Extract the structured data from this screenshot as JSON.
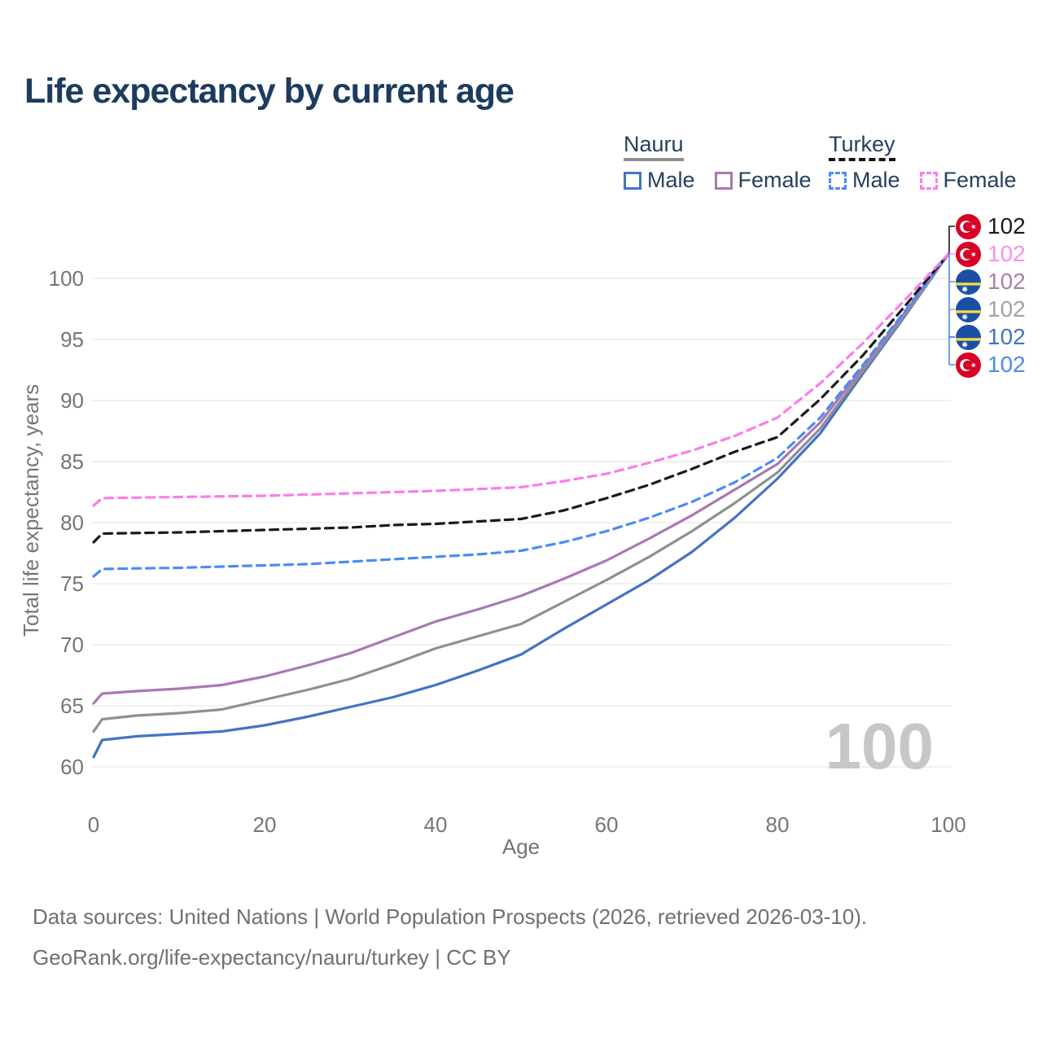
{
  "title": "Life expectancy by current age",
  "watermark": "100",
  "legend": {
    "groups": [
      {
        "label": "Nauru",
        "line_style": "solid",
        "header_swatch_color": "#8f8f8f",
        "items": [
          {
            "label": "Male",
            "color": "#4472c4"
          },
          {
            "label": "Female",
            "color": "#aa77b4"
          }
        ]
      },
      {
        "label": "Turkey",
        "line_style": "dashed",
        "header_swatch_color": "#141414",
        "items": [
          {
            "label": "Male",
            "color": "#4a8cf7"
          },
          {
            "label": "Female",
            "color": "#fa7de8"
          }
        ]
      }
    ]
  },
  "end_labels": [
    {
      "value": "102",
      "flag": "turkey",
      "color": "#1a1a1a"
    },
    {
      "value": "102",
      "flag": "turkey",
      "color": "#fc8fe8"
    },
    {
      "value": "102",
      "flag": "nauru",
      "color": "#a87fb0"
    },
    {
      "value": "102",
      "flag": "nauru",
      "color": "#a3a3a3"
    },
    {
      "value": "102",
      "flag": "nauru",
      "color": "#4472c4"
    },
    {
      "value": "102",
      "flag": "turkey",
      "color": "#4a8cf7"
    }
  ],
  "chart_data": {
    "type": "line",
    "title": "Life expectancy by current age",
    "xlabel": "Age",
    "ylabel": "Total life expectancy, years",
    "xlim": [
      0,
      100
    ],
    "ylim": [
      58,
      103
    ],
    "x_ticks": [
      0,
      20,
      40,
      60,
      80,
      100
    ],
    "y_ticks": [
      60,
      65,
      70,
      75,
      80,
      85,
      90,
      95,
      100
    ],
    "grid": "horizontal",
    "legend_position": "top-right",
    "x": [
      0,
      1,
      5,
      10,
      15,
      20,
      25,
      30,
      35,
      40,
      45,
      50,
      55,
      60,
      65,
      70,
      75,
      80,
      85,
      90,
      95,
      100
    ],
    "series": [
      {
        "key": "nauru-male",
        "name": "Nauru Male",
        "country": "Nauru",
        "sex": "male",
        "color": "#4472c4",
        "dash": "solid",
        "values": [
          60.8,
          62.2,
          62.5,
          62.7,
          62.9,
          63.4,
          64.1,
          64.9,
          65.7,
          66.7,
          67.9,
          69.2,
          71.3,
          73.3,
          75.3,
          77.6,
          80.4,
          83.6,
          87.3,
          92.2,
          97.0,
          102
        ]
      },
      {
        "key": "nauru-both",
        "name": "Nauru",
        "country": "Nauru",
        "sex": "both",
        "color": "#8f8f8f",
        "dash": "solid",
        "values": [
          62.9,
          63.9,
          64.2,
          64.4,
          64.7,
          65.5,
          66.3,
          67.2,
          68.4,
          69.7,
          70.7,
          71.7,
          73.5,
          75.3,
          77.2,
          79.3,
          81.6,
          84.1,
          87.7,
          92.4,
          97.1,
          102
        ]
      },
      {
        "key": "nauru-female",
        "name": "Nauru Female",
        "country": "Nauru",
        "sex": "female",
        "color": "#aa77b4",
        "dash": "solid",
        "values": [
          65.2,
          66.0,
          66.2,
          66.4,
          66.7,
          67.4,
          68.3,
          69.3,
          70.6,
          71.9,
          72.9,
          74.0,
          75.4,
          76.9,
          78.7,
          80.6,
          82.7,
          84.8,
          88.2,
          92.7,
          97.3,
          102
        ]
      },
      {
        "key": "turkey-male",
        "name": "Turkey Male",
        "country": "Turkey",
        "sex": "male",
        "color": "#4a8cf7",
        "dash": "dashed",
        "values": [
          75.6,
          76.2,
          76.25,
          76.3,
          76.4,
          76.5,
          76.6,
          76.8,
          77.0,
          77.2,
          77.4,
          77.7,
          78.4,
          79.3,
          80.4,
          81.7,
          83.3,
          85.3,
          88.6,
          92.9,
          97.4,
          102
        ]
      },
      {
        "key": "turkey-both",
        "name": "Turkey",
        "country": "Turkey",
        "sex": "both",
        "color": "#1a1a1a",
        "dash": "dashed",
        "values": [
          78.4,
          79.1,
          79.15,
          79.2,
          79.3,
          79.4,
          79.5,
          79.6,
          79.8,
          79.9,
          80.1,
          80.3,
          81.0,
          82.0,
          83.1,
          84.4,
          85.8,
          87.0,
          90.1,
          93.7,
          97.8,
          102
        ]
      },
      {
        "key": "turkey-female",
        "name": "Turkey Female",
        "country": "Turkey",
        "sex": "female",
        "color": "#fa7de8",
        "dash": "dashed",
        "values": [
          81.4,
          82.0,
          82.05,
          82.1,
          82.15,
          82.2,
          82.3,
          82.4,
          82.5,
          82.6,
          82.75,
          82.9,
          83.4,
          84.0,
          84.9,
          85.9,
          87.1,
          88.6,
          91.4,
          94.7,
          98.3,
          102
        ]
      }
    ],
    "end_value_label": "102"
  },
  "footer": {
    "line1": "Data sources: United Nations | World Population Prospects (2026, retrieved 2026-03-10).",
    "line2": "GeoRank.org/life-expectancy/nauru/turkey | CC BY"
  },
  "colors": {
    "title_text": "#1c3b5e",
    "axis_text": "#757575",
    "gridline": "#e8e8e8",
    "watermark": "#c7c7c7",
    "turkey_flag_red": "#d80027",
    "nauru_flag_blue": "#1b4fa5",
    "nauru_flag_yellow": "#ffda44"
  }
}
